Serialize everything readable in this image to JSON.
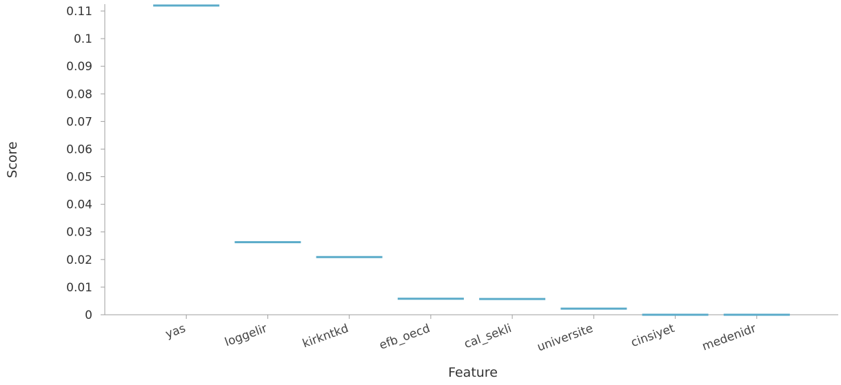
{
  "chart_data": {
    "type": "bar",
    "xlabel": "Feature",
    "ylabel": "Score",
    "ylim": [
      0,
      0.112
    ],
    "y_ticks": [
      0,
      0.01,
      0.02,
      0.03,
      0.04,
      0.05,
      0.06,
      0.07,
      0.08,
      0.09,
      0.1,
      0.11
    ],
    "y_tick_labels": [
      "0",
      "0.01",
      "0.02",
      "0.03",
      "0.04",
      "0.05",
      "0.06",
      "0.07",
      "0.08",
      "0.09",
      "0.1",
      "0.11"
    ],
    "categories": [
      "yas",
      "loggelir",
      "kirkntkd",
      "efb_oecd",
      "cal_sekli",
      "universite",
      "cinsiyet",
      "medenidr"
    ],
    "values": [
      0.112,
      0.0263,
      0.0209,
      0.0058,
      0.0057,
      0.0022,
      0.0,
      0.0
    ],
    "grid": false,
    "legend": "none",
    "colors": {
      "mark": "#5aabc9",
      "axis": "#9e9e9e",
      "text": "#333333"
    }
  }
}
